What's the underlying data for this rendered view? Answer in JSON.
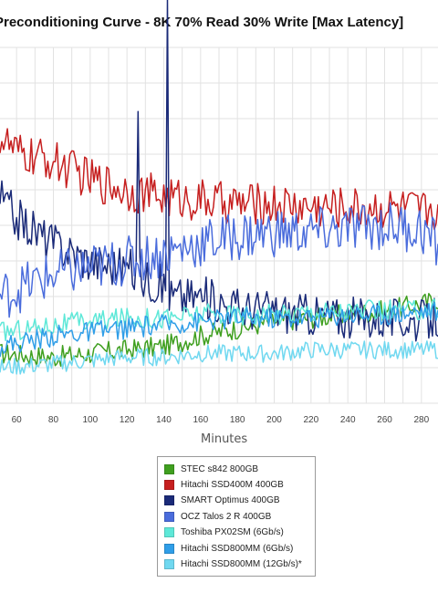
{
  "chart_data": {
    "type": "line",
    "title": "Preconditioning Curve - 8K 70% Read 30% Write [Max Latency]",
    "xlabel": "Minutes",
    "ylabel": "",
    "x_ticks": [
      60,
      80,
      100,
      120,
      140,
      160,
      180,
      200,
      220,
      240,
      260,
      280
    ],
    "xlim": [
      51,
      289
    ],
    "ylim": [
      0,
      100
    ],
    "y_scale_note": "relative",
    "grid": true,
    "legend_position": "bottom-center",
    "series": [
      {
        "name": "STEC s842 800GB",
        "color": "#3f9f1f",
        "values": [
          [
            51,
            14
          ],
          [
            80,
            13
          ],
          [
            100,
            14
          ],
          [
            120,
            15
          ],
          [
            140,
            16
          ],
          [
            160,
            19
          ],
          [
            180,
            21
          ],
          [
            200,
            23
          ],
          [
            220,
            24
          ],
          [
            240,
            25
          ],
          [
            260,
            26
          ],
          [
            280,
            28
          ],
          [
            289,
            29
          ]
        ]
      },
      {
        "name": "Hitachi SSD400M 400GB",
        "color": "#c61f1f",
        "values": [
          [
            51,
            75
          ],
          [
            60,
            70
          ],
          [
            80,
            68
          ],
          [
            100,
            63
          ],
          [
            120,
            60
          ],
          [
            140,
            58
          ],
          [
            160,
            57
          ],
          [
            180,
            56
          ],
          [
            200,
            56
          ],
          [
            220,
            55
          ],
          [
            240,
            55
          ],
          [
            260,
            55
          ],
          [
            280,
            54
          ],
          [
            289,
            55
          ]
        ]
      },
      {
        "name": "SMART Optimus 400GB",
        "color": "#1a2a78",
        "values": [
          [
            51,
            58
          ],
          [
            60,
            52
          ],
          [
            80,
            45
          ],
          [
            100,
            40
          ],
          [
            120,
            38
          ],
          [
            126,
            82
          ],
          [
            130,
            35
          ],
          [
            140,
            33
          ],
          [
            142,
            130
          ],
          [
            144,
            30
          ],
          [
            160,
            30
          ],
          [
            180,
            27
          ],
          [
            200,
            26
          ],
          [
            220,
            25
          ],
          [
            240,
            24
          ],
          [
            260,
            24
          ],
          [
            280,
            23
          ],
          [
            289,
            24
          ]
        ]
      },
      {
        "name": "OCZ Talos 2 R 400GB",
        "color": "#4a6cdc",
        "values": [
          [
            51,
            30
          ],
          [
            60,
            32
          ],
          [
            80,
            36
          ],
          [
            100,
            38
          ],
          [
            120,
            40
          ],
          [
            140,
            42
          ],
          [
            160,
            45
          ],
          [
            180,
            47
          ],
          [
            200,
            48
          ],
          [
            220,
            48
          ],
          [
            240,
            49
          ],
          [
            260,
            50
          ],
          [
            280,
            49
          ],
          [
            289,
            44
          ]
        ]
      },
      {
        "name": "Toshiba PX02SM (6Gb/s)",
        "color": "#5ee8d8",
        "values": [
          [
            51,
            20
          ],
          [
            80,
            22
          ],
          [
            100,
            23
          ],
          [
            120,
            24
          ],
          [
            140,
            24
          ],
          [
            160,
            25
          ],
          [
            180,
            25
          ],
          [
            200,
            25
          ],
          [
            220,
            26
          ],
          [
            240,
            26
          ],
          [
            260,
            26
          ],
          [
            280,
            26
          ],
          [
            289,
            27
          ]
        ]
      },
      {
        "name": "Hitachi SSD800MM (6Gb/s)",
        "color": "#2f9ee8",
        "values": [
          [
            51,
            16
          ],
          [
            80,
            19
          ],
          [
            100,
            20
          ],
          [
            120,
            21
          ],
          [
            140,
            22
          ],
          [
            160,
            23
          ],
          [
            180,
            24
          ],
          [
            200,
            24
          ],
          [
            220,
            24
          ],
          [
            240,
            25
          ],
          [
            260,
            25
          ],
          [
            280,
            26
          ],
          [
            289,
            26
          ]
        ]
      },
      {
        "name": "Hitachi SSD800MM (12Gb/s)*",
        "color": "#70d8f0",
        "values": [
          [
            51,
            10
          ],
          [
            80,
            11
          ],
          [
            100,
            12
          ],
          [
            120,
            13
          ],
          [
            140,
            13
          ],
          [
            160,
            14
          ],
          [
            180,
            14
          ],
          [
            200,
            14
          ],
          [
            220,
            15
          ],
          [
            240,
            15
          ],
          [
            260,
            15
          ],
          [
            280,
            15
          ],
          [
            289,
            15
          ]
        ]
      }
    ]
  }
}
